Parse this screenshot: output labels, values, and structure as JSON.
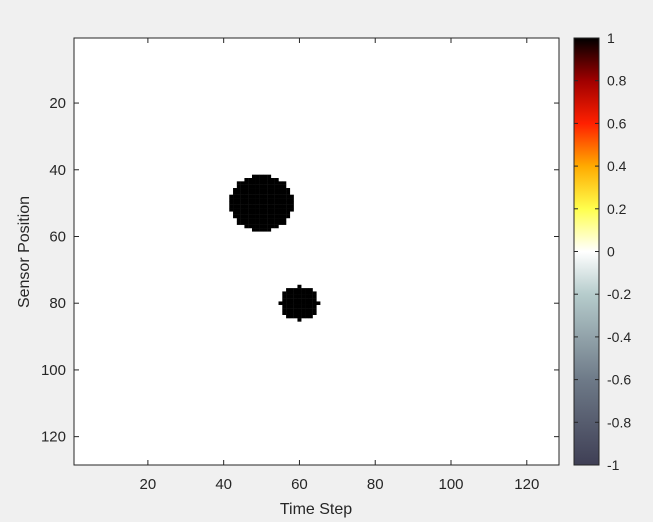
{
  "chart_data": {
    "type": "heatmap",
    "title": "",
    "xlabel": "Time Step",
    "ylabel": "Sensor Position",
    "xlim": [
      0.5,
      128.5
    ],
    "ylim": [
      0.5,
      128.5
    ],
    "y_direction": "reverse",
    "xticks": [
      20,
      40,
      60,
      80,
      100,
      120
    ],
    "yticks": [
      20,
      40,
      60,
      80,
      100,
      120
    ],
    "background_value": 0,
    "blobs": [
      {
        "center_x": 50,
        "center_y": 50,
        "radius": 8.5,
        "value": 1
      },
      {
        "center_x": 60,
        "center_y": 80,
        "radius": 5,
        "value": 1
      }
    ],
    "colorbar": {
      "min": -1,
      "max": 1,
      "ticks": [
        1,
        0.8,
        0.6,
        0.4,
        0.2,
        0,
        -0.2,
        -0.4,
        -0.6,
        -0.8,
        -1
      ],
      "tick_labels": [
        "1",
        "0.8",
        "0.6",
        "0.4",
        "0.2",
        "0",
        "-0.2",
        "-0.4",
        "-0.6",
        "-0.8",
        "-1"
      ],
      "colors": [
        {
          "value": -1,
          "color": "#3f3f55"
        },
        {
          "value": -0.6,
          "color": "#6e7a88"
        },
        {
          "value": -0.2,
          "color": "#b6cccc"
        },
        {
          "value": 0,
          "color": "#ffffff"
        },
        {
          "value": 0.2,
          "color": "#ffff4d"
        },
        {
          "value": 0.4,
          "color": "#ffaa00"
        },
        {
          "value": 0.6,
          "color": "#ff2000"
        },
        {
          "value": 0.8,
          "color": "#a00000"
        },
        {
          "value": 1,
          "color": "#000000"
        }
      ]
    }
  }
}
